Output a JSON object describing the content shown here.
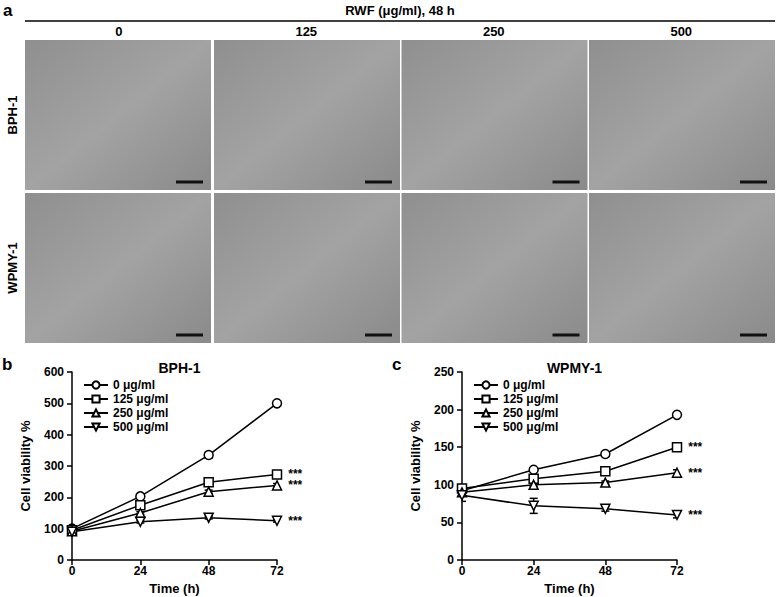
{
  "image_panel": {
    "panel": "a",
    "title": "RWF (μg/ml), 48 h",
    "columns": [
      "0",
      "125",
      "250",
      "500"
    ],
    "rows": [
      "BPH-1",
      "WPMY-1"
    ]
  },
  "chart_data": [
    {
      "type": "line",
      "panel": "b",
      "title": "BPH-1",
      "x_label": "Time (h)",
      "y_label": "Cell viability %",
      "x": [
        0,
        24,
        48,
        72
      ],
      "xlim": [
        0,
        72
      ],
      "xticks": [
        0,
        24,
        48,
        72
      ],
      "ylim": [
        0,
        600
      ],
      "yticks": [
        0,
        100,
        200,
        300,
        400,
        500,
        600
      ],
      "grid": false,
      "legend": "upper left",
      "series": [
        {
          "name": "0 μg/ml",
          "color": "#000000",
          "marker": "circle",
          "values": [
            100,
            203,
            335,
            500
          ],
          "errors": [
            3,
            5,
            9,
            8
          ]
        },
        {
          "name": "125 μg/ml",
          "color": "#000000",
          "marker": "square",
          "values": [
            95,
            175,
            248,
            273
          ],
          "errors": [
            3,
            5,
            6,
            6
          ],
          "annotation": "***"
        },
        {
          "name": "250 μg/ml",
          "color": "#000000",
          "marker": "triangle",
          "values": [
            92,
            150,
            218,
            238
          ],
          "errors": [
            3,
            4,
            5,
            6
          ],
          "annotation": "***"
        },
        {
          "name": "500 μg/ml",
          "color": "#000000",
          "marker": "triangle_down",
          "values": [
            90,
            122,
            135,
            125
          ],
          "errors": [
            3,
            4,
            4,
            4
          ],
          "annotation": "***"
        }
      ]
    },
    {
      "type": "line",
      "panel": "c",
      "title": "WPMY-1",
      "x_label": "Time (h)",
      "y_label": "Cell viability %",
      "x": [
        0,
        24,
        48,
        72
      ],
      "xlim": [
        0,
        72
      ],
      "xticks": [
        0,
        24,
        48,
        72
      ],
      "ylim": [
        0,
        250
      ],
      "yticks": [
        0,
        50,
        100,
        150,
        200,
        250
      ],
      "grid": false,
      "legend": "upper left",
      "series": [
        {
          "name": "0 μg/ml",
          "color": "#000000",
          "marker": "circle",
          "values": [
            92,
            120,
            141,
            193
          ],
          "errors": [
            3,
            2,
            3,
            3
          ]
        },
        {
          "name": "125 μg/ml",
          "color": "#000000",
          "marker": "square",
          "values": [
            95,
            108,
            118,
            150
          ],
          "errors": [
            3,
            2,
            2,
            3
          ],
          "annotation": "***"
        },
        {
          "name": "250 μg/ml",
          "color": "#000000",
          "marker": "triangle",
          "values": [
            90,
            100,
            103,
            116
          ],
          "errors": [
            3,
            2,
            2,
            4
          ],
          "annotation": "***"
        },
        {
          "name": "500 μg/ml",
          "color": "#000000",
          "marker": "triangle_down",
          "values": [
            86,
            72,
            68,
            60
          ],
          "errors": [
            8,
            10,
            3,
            4
          ],
          "annotation": "***"
        }
      ]
    }
  ]
}
